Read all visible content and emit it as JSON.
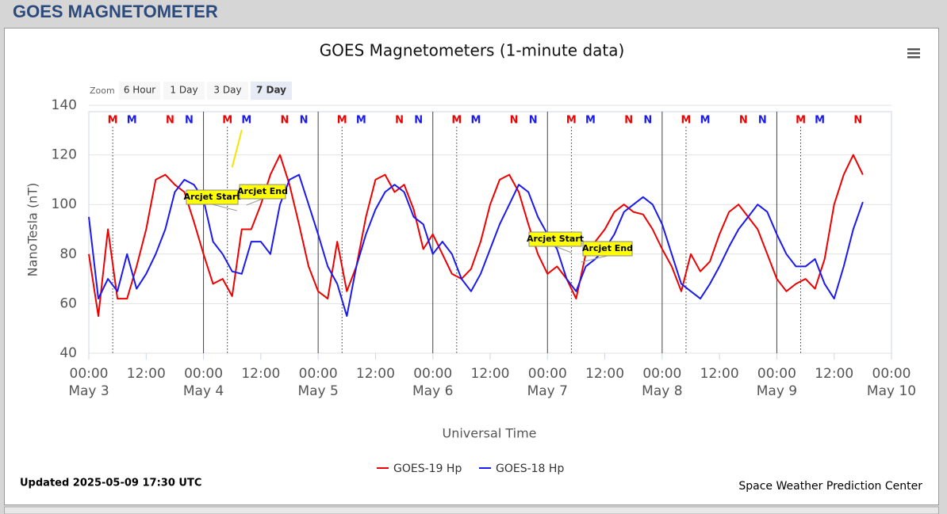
{
  "header": {
    "title": "GOES MAGNETOMETER"
  },
  "chart_data": {
    "type": "line",
    "title": "GOES Magnetometers (1-minute data)",
    "zoom": {
      "label": "Zoom",
      "buttons": [
        "6 Hour",
        "1 Day",
        "3 Day",
        "7 Day"
      ],
      "selected": 3
    },
    "xlabel": "Universal Time",
    "ylabel": "NanoTesla (nT)",
    "x": [
      "May 3 00:00",
      "May 3 02:00",
      "May 3 04:00",
      "May 3 06:00",
      "May 3 08:00",
      "May 3 10:00",
      "May 3 12:00",
      "May 3 14:00",
      "May 3 16:00",
      "May 3 18:00",
      "May 3 20:00",
      "May 3 22:00",
      "May 4 00:00",
      "May 4 02:00",
      "May 4 04:00",
      "May 4 06:00",
      "May 4 08:00",
      "May 4 10:00",
      "May 4 12:00",
      "May 4 14:00",
      "May 4 16:00",
      "May 4 18:00",
      "May 4 20:00",
      "May 4 22:00",
      "May 5 00:00",
      "May 5 02:00",
      "May 5 04:00",
      "May 5 06:00",
      "May 5 08:00",
      "May 5 10:00",
      "May 5 12:00",
      "May 5 14:00",
      "May 5 16:00",
      "May 5 18:00",
      "May 5 20:00",
      "May 5 22:00",
      "May 6 00:00",
      "May 6 02:00",
      "May 6 04:00",
      "May 6 06:00",
      "May 6 08:00",
      "May 6 10:00",
      "May 6 12:00",
      "May 6 14:00",
      "May 6 16:00",
      "May 6 18:00",
      "May 6 20:00",
      "May 6 22:00",
      "May 7 00:00",
      "May 7 02:00",
      "May 7 04:00",
      "May 7 06:00",
      "May 7 08:00",
      "May 7 10:00",
      "May 7 12:00",
      "May 7 14:00",
      "May 7 16:00",
      "May 7 18:00",
      "May 7 20:00",
      "May 7 22:00",
      "May 8 00:00",
      "May 8 02:00",
      "May 8 04:00",
      "May 8 06:00",
      "May 8 08:00",
      "May 8 10:00",
      "May 8 12:00",
      "May 8 14:00",
      "May 8 16:00",
      "May 8 18:00",
      "May 8 20:00",
      "May 8 22:00",
      "May 9 00:00",
      "May 9 02:00",
      "May 9 04:00",
      "May 9 06:00",
      "May 9 08:00",
      "May 9 10:00",
      "May 9 12:00",
      "May 9 14:00",
      "May 9 16:00",
      "May 9 18:00"
    ],
    "series": [
      {
        "name": "GOES-19 Hp",
        "color": "#ee0000",
        "values": [
          80,
          55,
          90,
          62,
          62,
          75,
          90,
          110,
          112,
          108,
          105,
          93,
          80,
          68,
          70,
          63,
          90,
          90,
          100,
          112,
          120,
          108,
          92,
          75,
          65,
          62,
          85,
          65,
          75,
          95,
          110,
          112,
          105,
          108,
          98,
          82,
          88,
          80,
          72,
          70,
          74,
          85,
          100,
          110,
          112,
          105,
          92,
          80,
          72,
          75,
          70,
          62,
          80,
          85,
          90,
          97,
          100,
          97,
          96,
          90,
          82,
          75,
          65,
          80,
          73,
          77,
          88,
          97,
          100,
          95,
          90,
          80,
          70,
          65,
          68,
          70,
          66,
          78,
          100,
          112,
          120,
          112
        ]
      },
      {
        "name": "GOES-18 Hp",
        "color": "#1a1aee",
        "values": [
          95,
          62,
          70,
          65,
          80,
          66,
          72,
          80,
          90,
          105,
          110,
          108,
          102,
          85,
          80,
          73,
          72,
          85,
          85,
          80,
          100,
          110,
          112,
          100,
          88,
          75,
          68,
          55,
          75,
          88,
          98,
          105,
          108,
          105,
          95,
          92,
          80,
          85,
          80,
          70,
          65,
          72,
          82,
          92,
          100,
          108,
          105,
          95,
          88,
          82,
          70,
          65,
          75,
          78,
          82,
          88,
          97,
          100,
          103,
          100,
          92,
          80,
          68,
          65,
          62,
          68,
          75,
          83,
          90,
          95,
          100,
          97,
          88,
          80,
          75,
          75,
          78,
          68,
          62,
          75,
          90,
          101
        ]
      },
      {
        "color": "#f2e600",
        "values": [
          null,
          null,
          null,
          null,
          null,
          null,
          null,
          null,
          null,
          null,
          null,
          null,
          null,
          null,
          null,
          115,
          130,
          null,
          null,
          null,
          null,
          null,
          null,
          null,
          null,
          null,
          null,
          null,
          null,
          null,
          null,
          null,
          null,
          null,
          null,
          null,
          null,
          null,
          null,
          null,
          null,
          null,
          null,
          null,
          null,
          null,
          null,
          null,
          null,
          null,
          null,
          null,
          null,
          null,
          null,
          null,
          null,
          null,
          null,
          null,
          null,
          null,
          null,
          null,
          null,
          null,
          null,
          null,
          null,
          null,
          null,
          null,
          null,
          null,
          null,
          null,
          null,
          null,
          null,
          null,
          null,
          null
        ]
      }
    ],
    "xlim": [
      "May 3 00:00",
      "May 10 00:00"
    ],
    "xticks": [
      {
        "value": "May 3 00:00",
        "label": [
          "00:00",
          "May 3"
        ]
      },
      {
        "value": "May 3 12:00",
        "label": "12:00"
      },
      {
        "value": "May 4 00:00",
        "label": [
          "00:00",
          "May 4"
        ]
      },
      {
        "value": "May 4 12:00",
        "label": "12:00"
      },
      {
        "value": "May 5 00:00",
        "label": [
          "00:00",
          "May 5"
        ]
      },
      {
        "value": "May 5 12:00",
        "label": "12:00"
      },
      {
        "value": "May 6 00:00",
        "label": [
          "00:00",
          "May 6"
        ]
      },
      {
        "value": "May 6 12:00",
        "label": "12:00"
      },
      {
        "value": "May 7 00:00",
        "label": [
          "00:00",
          "May 7"
        ]
      },
      {
        "value": "May 7 12:00",
        "label": "12:00"
      },
      {
        "value": "May 8 00:00",
        "label": [
          "00:00",
          "May 8"
        ]
      },
      {
        "value": "May 8 12:00",
        "label": "12:00"
      },
      {
        "value": "May 9 00:00",
        "label": [
          "00:00",
          "May 9"
        ]
      },
      {
        "value": "May 9 12:00",
        "label": "12:00"
      },
      {
        "value": "May 10 00:00",
        "label": [
          "00:00",
          "May 10"
        ]
      }
    ],
    "ylim": [
      40,
      140
    ],
    "yticks": [
      40,
      60,
      80,
      100,
      120,
      140
    ],
    "grid": true,
    "markers": [
      {
        "label": "M",
        "color": "#ee0000",
        "x": "May 3 05:00"
      },
      {
        "label": "M",
        "color": "#1a1aee",
        "x": "May 3 09:00"
      },
      {
        "label": "N",
        "color": "#ee0000",
        "x": "May 3 17:00"
      },
      {
        "label": "N",
        "color": "#1a1aee",
        "x": "May 3 21:00"
      },
      {
        "label": "M",
        "color": "#ee0000",
        "x": "May 4 05:00"
      },
      {
        "label": "M",
        "color": "#1a1aee",
        "x": "May 4 09:00"
      },
      {
        "label": "N",
        "color": "#ee0000",
        "x": "May 4 17:00"
      },
      {
        "label": "N",
        "color": "#1a1aee",
        "x": "May 4 21:00"
      },
      {
        "label": "M",
        "color": "#ee0000",
        "x": "May 5 05:00"
      },
      {
        "label": "M",
        "color": "#1a1aee",
        "x": "May 5 09:00"
      },
      {
        "label": "N",
        "color": "#ee0000",
        "x": "May 5 17:00"
      },
      {
        "label": "N",
        "color": "#1a1aee",
        "x": "May 5 21:00"
      },
      {
        "label": "M",
        "color": "#ee0000",
        "x": "May 6 05:00"
      },
      {
        "label": "M",
        "color": "#1a1aee",
        "x": "May 6 09:00"
      },
      {
        "label": "N",
        "color": "#ee0000",
        "x": "May 6 17:00"
      },
      {
        "label": "N",
        "color": "#1a1aee",
        "x": "May 6 21:00"
      },
      {
        "label": "M",
        "color": "#ee0000",
        "x": "May 7 05:00"
      },
      {
        "label": "M",
        "color": "#1a1aee",
        "x": "May 7 09:00"
      },
      {
        "label": "N",
        "color": "#ee0000",
        "x": "May 7 17:00"
      },
      {
        "label": "N",
        "color": "#1a1aee",
        "x": "May 7 21:00"
      },
      {
        "label": "M",
        "color": "#ee0000",
        "x": "May 8 05:00"
      },
      {
        "label": "M",
        "color": "#1a1aee",
        "x": "May 8 09:00"
      },
      {
        "label": "N",
        "color": "#ee0000",
        "x": "May 8 17:00"
      },
      {
        "label": "N",
        "color": "#1a1aee",
        "x": "May 8 21:00"
      },
      {
        "label": "M",
        "color": "#ee0000",
        "x": "May 9 05:00"
      },
      {
        "label": "M",
        "color": "#1a1aee",
        "x": "May 9 09:00"
      },
      {
        "label": "N",
        "color": "#ee0000",
        "x": "May 9 17:00"
      }
    ],
    "annotations": [
      {
        "text": "Arcjet Start",
        "x": "May 4 07:00"
      },
      {
        "text": "Arcjet End",
        "x": "May 4 09:00"
      },
      {
        "text": "Arcjet Start",
        "x": "May 7 05:00"
      },
      {
        "text": "Arcjet End",
        "x": "May 7 07:00"
      }
    ],
    "updated": "Updated 2025-05-09 17:30 UTC",
    "credit": "Space Weather Prediction Center"
  }
}
